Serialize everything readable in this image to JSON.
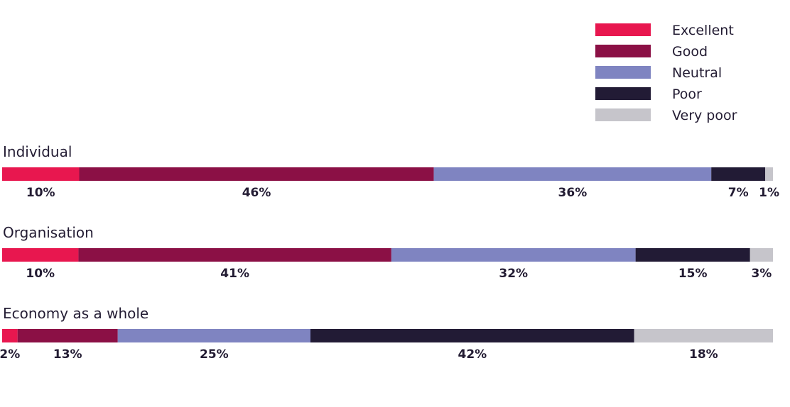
{
  "chart_data": {
    "type": "bar",
    "orientation": "horizontal",
    "stacked": true,
    "normalized_to_percent": true,
    "categories": [
      "Individual",
      "Organisation",
      "Economy as a whole"
    ],
    "series": [
      {
        "name": "Excellent",
        "color": "#e8174f",
        "values": [
          10,
          10,
          2
        ]
      },
      {
        "name": "Good",
        "color": "#8b1045",
        "values": [
          46,
          41,
          13
        ]
      },
      {
        "name": "Neutral",
        "color": "#7f84c1",
        "values": [
          36,
          32,
          25
        ]
      },
      {
        "name": "Poor",
        "color": "#221b35",
        "values": [
          7,
          15,
          42
        ]
      },
      {
        "name": "Very poor",
        "color": "#c6c5cb",
        "values": [
          1,
          3,
          18
        ]
      }
    ],
    "value_labels": [
      [
        "10%",
        "46%",
        "36%",
        "7%",
        "1%"
      ],
      [
        "10%",
        "41%",
        "32%",
        "15%",
        "3%"
      ],
      [
        "2%",
        "13%",
        "25%",
        "42%",
        "18%"
      ]
    ],
    "legend_position": "top-right",
    "grid": false
  }
}
